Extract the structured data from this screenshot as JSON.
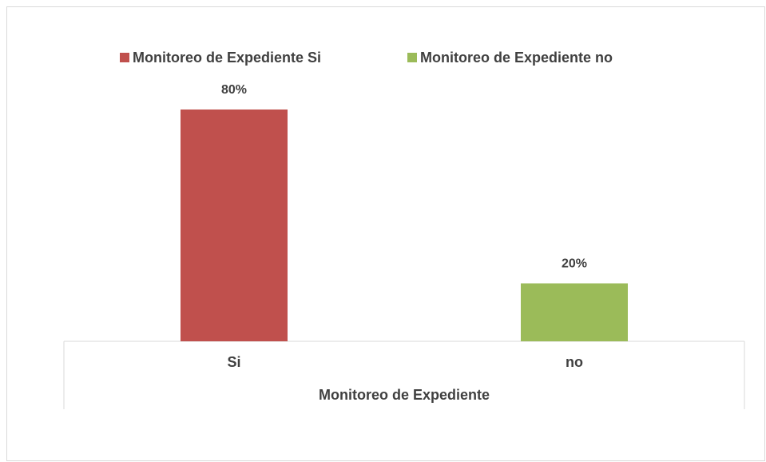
{
  "chart_data": {
    "type": "bar",
    "categories": [
      "Si",
      "no"
    ],
    "series": [
      {
        "name": "Monitoreo de Expediente Si",
        "color": "#c0504d",
        "values": [
          80,
          null
        ],
        "value_labels": [
          "80%",
          null
        ]
      },
      {
        "name": "Monitoreo de Expediente no",
        "color": "#9bbb59",
        "values": [
          null,
          20
        ],
        "value_labels": [
          null,
          "20%"
        ]
      }
    ],
    "xlabel": "Monitoreo de Expediente",
    "ylim": [
      0,
      100
    ],
    "legend": "top"
  }
}
